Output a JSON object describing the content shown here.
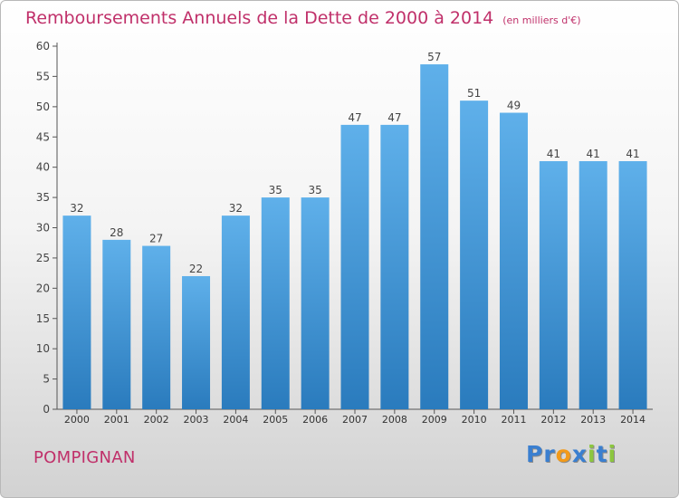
{
  "chart_data": {
    "type": "bar",
    "title": "Remboursements Annuels de la Dette de 2000 à 2014",
    "subtitle": "(en milliers d'€)",
    "categories": [
      "2000",
      "2001",
      "2002",
      "2003",
      "2004",
      "2005",
      "2006",
      "2007",
      "2008",
      "2009",
      "2010",
      "2011",
      "2012",
      "2013",
      "2014"
    ],
    "values": [
      32,
      28,
      27,
      22,
      32,
      35,
      35,
      47,
      47,
      57,
      51,
      49,
      41,
      41,
      41
    ],
    "ylim": [
      0,
      60
    ],
    "yticks": [
      0,
      5,
      10,
      15,
      20,
      25,
      30,
      35,
      40,
      45,
      50,
      55,
      60
    ],
    "grid": false,
    "data_labels": true,
    "bar_color_light": "#5fb0ea",
    "bar_color_dark": "#2a7bbd"
  },
  "footer": {
    "town": "POMPIGNAN",
    "logo_letters": [
      {
        "ch": "P",
        "color": "#3a7fd0"
      },
      {
        "ch": "r",
        "color": "#3a7fd0"
      },
      {
        "ch": "o",
        "color": "#f29a1a"
      },
      {
        "ch": "x",
        "color": "#3a7fd0"
      },
      {
        "ch": "i",
        "color": "#8cc63f"
      },
      {
        "ch": "t",
        "color": "#3a7fd0"
      },
      {
        "ch": "i",
        "color": "#8cc63f"
      }
    ]
  }
}
